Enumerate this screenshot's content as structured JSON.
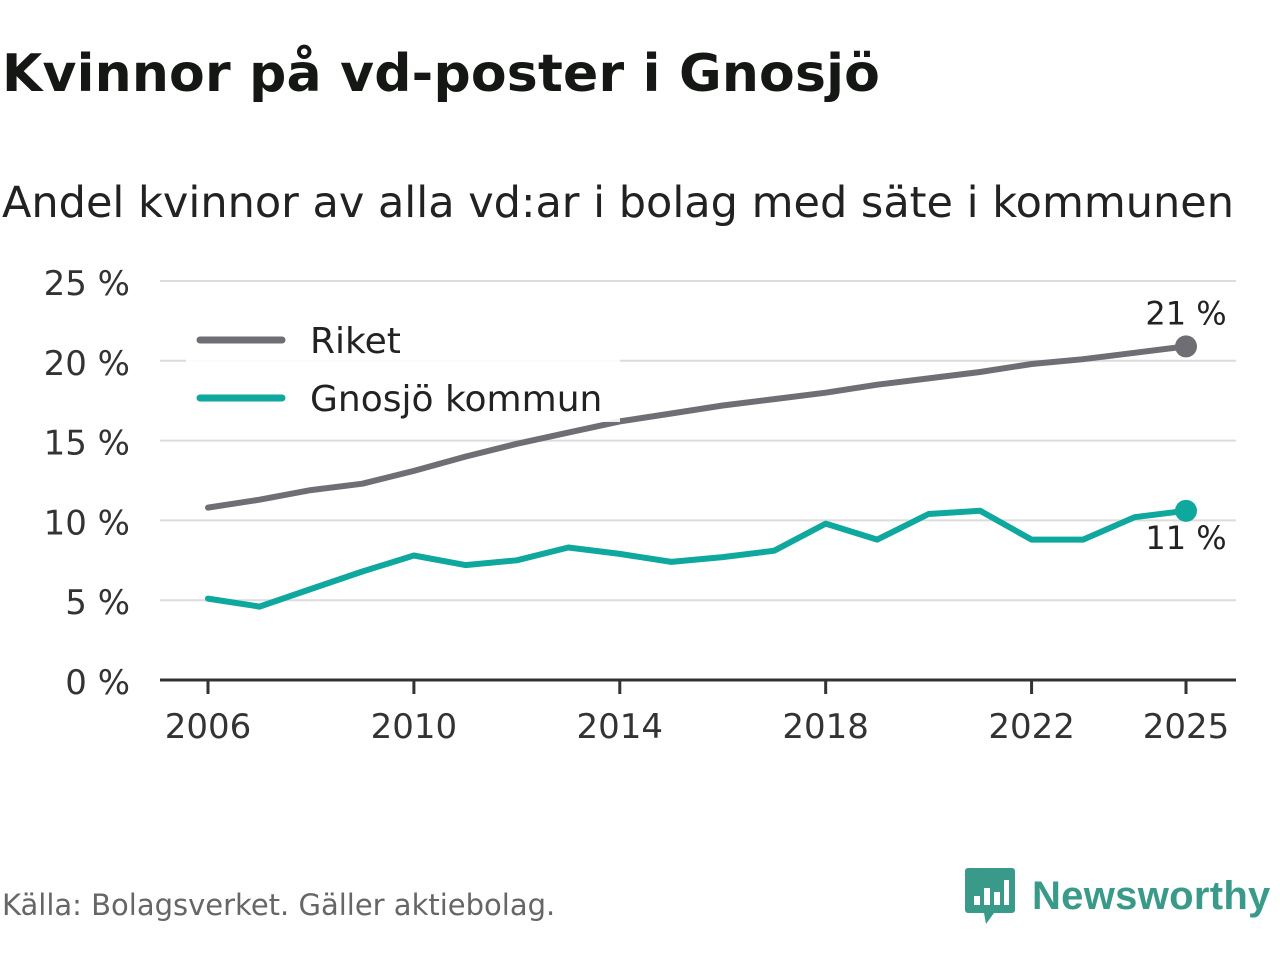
{
  "header": {
    "title": "Kvinnor på vd-poster i Gnosjö",
    "subtitle": "Andel kvinnor av alla vd:ar i bolag med säte i kommunen"
  },
  "footer": {
    "source": "Källa: Bolagsverket. Gäller aktiebolag.",
    "brand": "Newsworthy",
    "brand_icon": "newsworthy-logo-icon"
  },
  "colors": {
    "riket": "#6f6e74",
    "gnosjo": "#0fa89e",
    "grid": "#dcdcdc",
    "axis": "#333333",
    "brand": "#3a9a8a"
  },
  "chart_data": {
    "type": "line",
    "title": "Kvinnor på vd-poster i Gnosjö",
    "subtitle": "Andel kvinnor av alla vd:ar i bolag med säte i kommunen",
    "xlabel": "",
    "ylabel": "",
    "x": [
      2006,
      2007,
      2008,
      2009,
      2010,
      2011,
      2012,
      2013,
      2014,
      2015,
      2016,
      2017,
      2018,
      2019,
      2020,
      2021,
      2022,
      2023,
      2024,
      2025
    ],
    "xlim": [
      2006,
      2025
    ],
    "ylim": [
      0,
      25
    ],
    "yticks": [
      0,
      5,
      10,
      15,
      20,
      25
    ],
    "ytick_labels": [
      "0 %",
      "5 %",
      "10 %",
      "15 %",
      "20 %",
      "25 %"
    ],
    "xticks": [
      2006,
      2010,
      2014,
      2018,
      2022,
      2025
    ],
    "xtick_labels": [
      "2006",
      "2010",
      "2014",
      "2018",
      "2022",
      "2025"
    ],
    "grid": true,
    "legend_position": "top-left",
    "series": [
      {
        "name": "Riket",
        "color": "#6f6e74",
        "values": [
          10.8,
          11.3,
          11.9,
          12.3,
          13.1,
          14.0,
          14.8,
          15.5,
          16.2,
          16.7,
          17.2,
          17.6,
          18.0,
          18.5,
          18.9,
          19.3,
          19.8,
          20.1,
          20.5,
          20.9
        ],
        "end_label": "21 %"
      },
      {
        "name": "Gnosjö kommun",
        "color": "#0fa89e",
        "values": [
          5.1,
          4.6,
          5.7,
          6.8,
          7.8,
          7.2,
          7.5,
          8.3,
          7.9,
          7.4,
          7.7,
          8.1,
          9.8,
          8.8,
          10.4,
          10.6,
          8.8,
          8.8,
          10.2,
          10.6
        ],
        "end_label": "11 %"
      }
    ]
  }
}
